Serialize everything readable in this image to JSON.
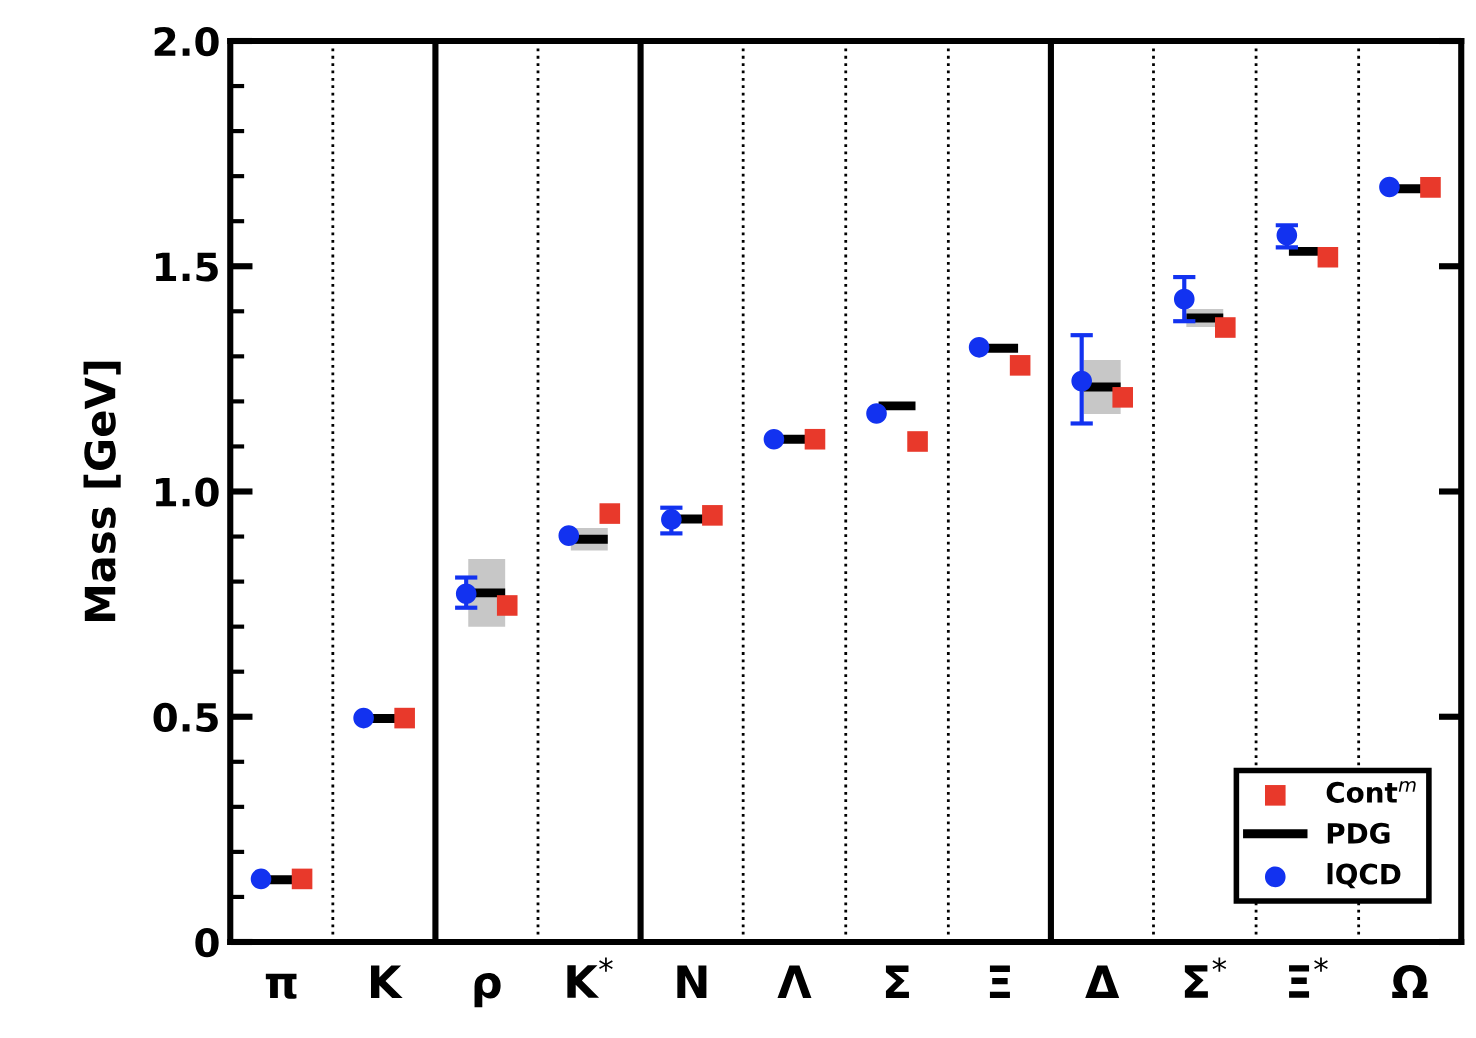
{
  "chart_data": {
    "type": "scatter",
    "ylabel": "Mass [GeV]",
    "categories": [
      "π",
      "K",
      "ρ",
      "K$^{*}$",
      "N",
      "Λ",
      "Σ",
      "Ξ",
      "Δ",
      "Σ$^{*}$",
      "Ξ$^{*}$",
      "Ω"
    ],
    "ylim": [
      0,
      2.0
    ],
    "yticks": [
      0,
      {
        "value": 0.5,
        "label": "0.5"
      },
      {
        "value": 1.0,
        "label": "1.0"
      },
      {
        "value": 1.5,
        "label": "1.5"
      },
      {
        "value": 2.0,
        "label": "2.0"
      }
    ],
    "series": [
      {
        "name": "Cont$^{m}$",
        "color": "#e8392b",
        "marker": "square",
        "values": [
          0.14,
          0.497,
          0.747,
          0.951,
          0.947,
          1.116,
          1.111,
          1.28,
          1.209,
          1.364,
          1.52,
          1.675
        ]
      },
      {
        "name": "PDG",
        "type": "box",
        "color": "#000000",
        "boxes": [
          {
            "q1": 0.138,
            "median": 0.138,
            "q3": 0.138
          },
          {
            "q1": 0.496,
            "median": 0.496,
            "q3": 0.496
          },
          {
            "q1": 0.7,
            "median": 0.775,
            "q3": 0.85
          },
          {
            "q1": 0.869,
            "median": 0.894,
            "q3": 0.919
          },
          {
            "q1": 0.939,
            "median": 0.939,
            "q3": 0.939
          },
          {
            "q1": 1.116,
            "median": 1.116,
            "q3": 1.116
          },
          {
            "q1": 1.19,
            "median": 1.19,
            "q3": 1.19
          },
          {
            "q1": 1.318,
            "median": 1.318,
            "q3": 1.318
          },
          {
            "q1": 1.172,
            "median": 1.232,
            "q3": 1.292
          },
          {
            "q1": 1.365,
            "median": 1.385,
            "q3": 1.405
          },
          {
            "q1": 1.533,
            "median": 1.533,
            "q3": 1.533
          },
          {
            "q1": 1.672,
            "median": 1.672,
            "q3": 1.672
          }
        ]
      },
      {
        "name": "lQCD",
        "color": "#1232f0",
        "marker": "circle",
        "values": [
          0.14,
          0.497,
          0.773,
          0.902,
          0.938,
          1.116,
          1.173,
          1.32,
          1.245,
          1.427,
          1.569,
          1.676
        ],
        "errors": [
          null,
          null,
          [
            0.742,
            0.809
          ],
          null,
          [
            0.907,
            0.964
          ],
          null,
          null,
          null,
          [
            1.151,
            1.347
          ],
          [
            1.378,
            1.476
          ],
          [
            1.542,
            1.591
          ],
          null
        ]
      }
    ],
    "legend": "bottom right",
    "grid": false
  }
}
